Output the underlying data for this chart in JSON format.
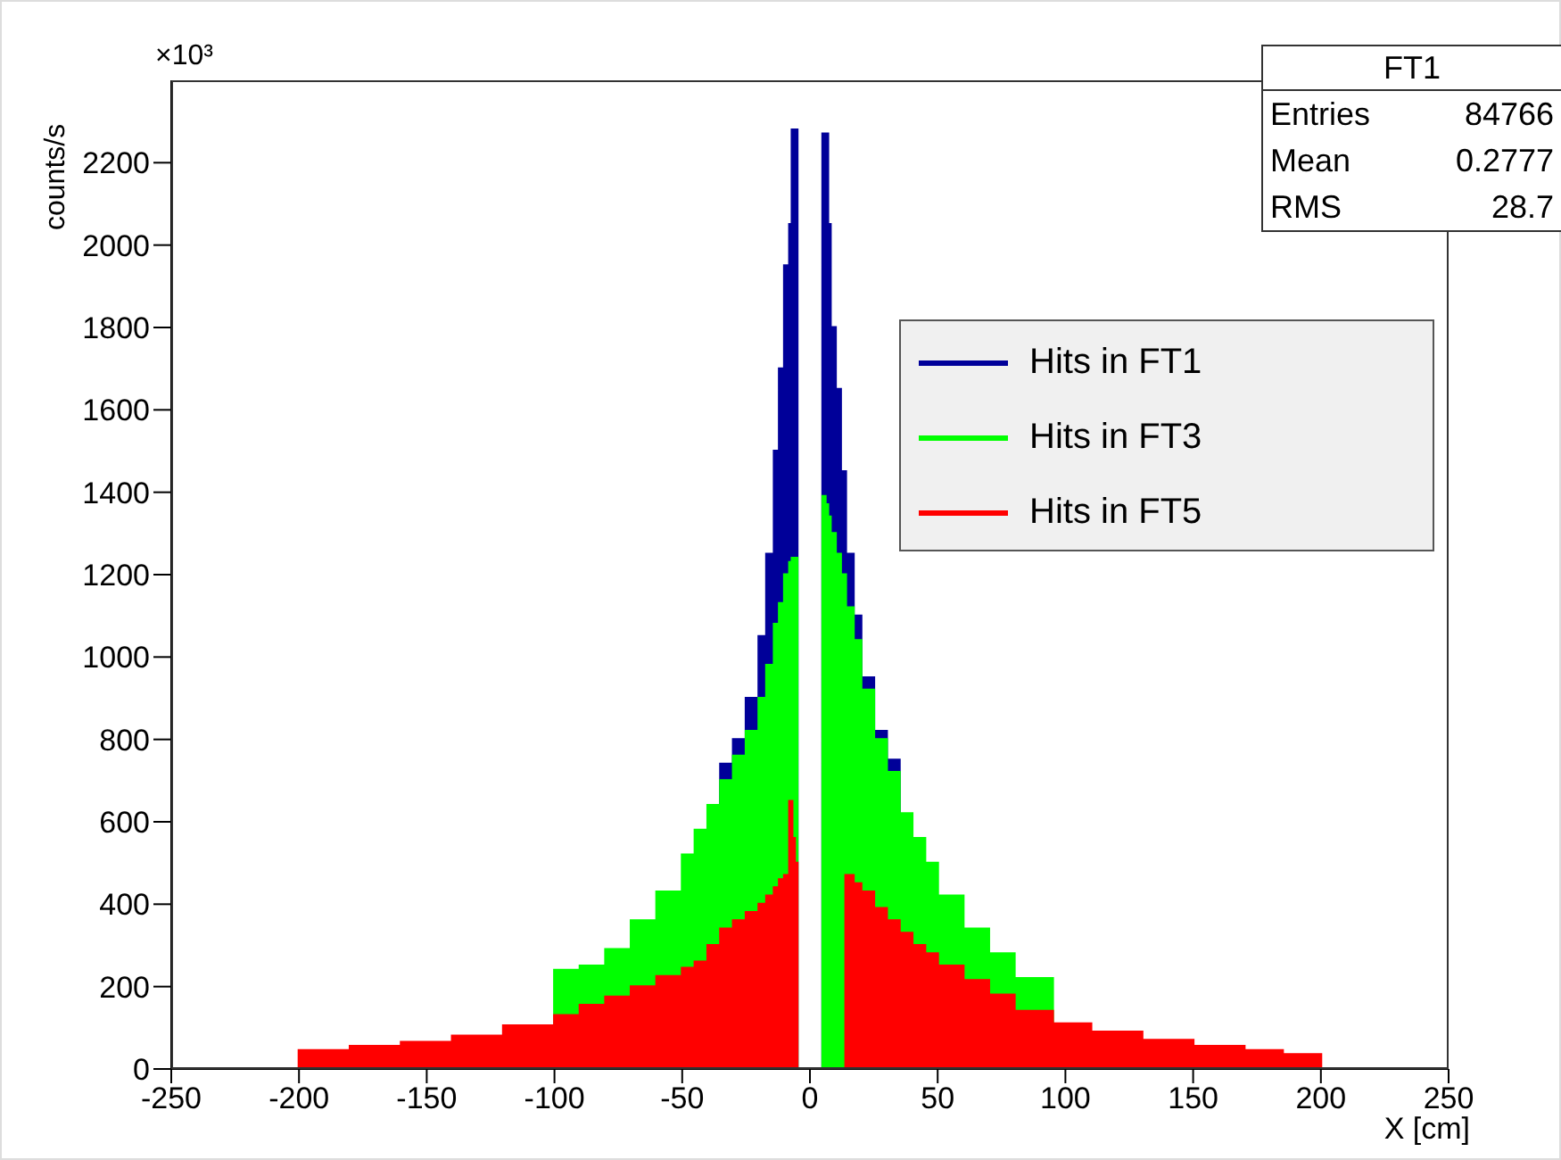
{
  "chart_data": {
    "type": "histogram",
    "ylabel": "counts/s",
    "xlabel": "X [cm]",
    "annotations": [
      "×10³",
      "FT1",
      "Entries 84766",
      "Mean 0.2777",
      "RMS 28.7"
    ],
    "bins": [
      -250,
      -200,
      -180,
      -160,
      -140,
      -120,
      -100,
      -90,
      -80,
      -70,
      -60,
      -50,
      -45,
      -40,
      -35,
      -30,
      -25,
      -20,
      -17,
      -14,
      -12,
      -10,
      -8,
      -7,
      -6,
      -5,
      5,
      6,
      7,
      8,
      10,
      12,
      14,
      17,
      20,
      25,
      30,
      35,
      40,
      45,
      50,
      60,
      70,
      80,
      95,
      110,
      130,
      150,
      170,
      185,
      200,
      250
    ],
    "series": [
      {
        "name": "Hits in FT1",
        "color": "#000099",
        "values": [
          0,
          0,
          0,
          0,
          0,
          0,
          0,
          0,
          0,
          0,
          0,
          0,
          0,
          0,
          740,
          800,
          900,
          1050,
          1250,
          1500,
          1700,
          1950,
          2050,
          2280,
          2280,
          0,
          2270,
          2270,
          2050,
          1800,
          1650,
          1450,
          1250,
          1100,
          950,
          820,
          750,
          0,
          0,
          0,
          0,
          0,
          0,
          0,
          0,
          0,
          0,
          0,
          0,
          0,
          0
        ]
      },
      {
        "name": "Hits in FT3",
        "color": "#00ff00",
        "values": [
          0,
          0,
          0,
          0,
          0,
          0,
          240,
          250,
          290,
          360,
          430,
          520,
          580,
          640,
          700,
          760,
          820,
          900,
          980,
          1080,
          1130,
          1200,
          1230,
          1240,
          1240,
          0,
          1390,
          1370,
          1340,
          1300,
          1250,
          1200,
          1120,
          1040,
          920,
          800,
          720,
          620,
          560,
          500,
          420,
          340,
          280,
          220,
          0,
          0,
          0,
          0,
          0,
          0,
          0
        ]
      },
      {
        "name": "Hits in FT5",
        "color": "#ff0000",
        "values": [
          0,
          45,
          55,
          65,
          80,
          105,
          130,
          155,
          175,
          200,
          225,
          245,
          260,
          300,
          340,
          360,
          380,
          400,
          420,
          440,
          460,
          470,
          650,
          560,
          500,
          0,
          0,
          0,
          0,
          0,
          0,
          0,
          470,
          450,
          430,
          390,
          360,
          330,
          300,
          280,
          250,
          215,
          180,
          140,
          110,
          90,
          70,
          55,
          45,
          35,
          0
        ]
      }
    ],
    "xlim": [
      -250,
      250
    ],
    "xticks": [
      -250,
      -200,
      -150,
      -100,
      -50,
      0,
      50,
      100,
      150,
      200,
      250
    ],
    "ylim": [
      0,
      2400
    ],
    "yticks": [
      0,
      200,
      400,
      600,
      800,
      1000,
      1200,
      1400,
      1600,
      1800,
      2000,
      2200
    ],
    "grid": false,
    "legend": "top right"
  }
}
